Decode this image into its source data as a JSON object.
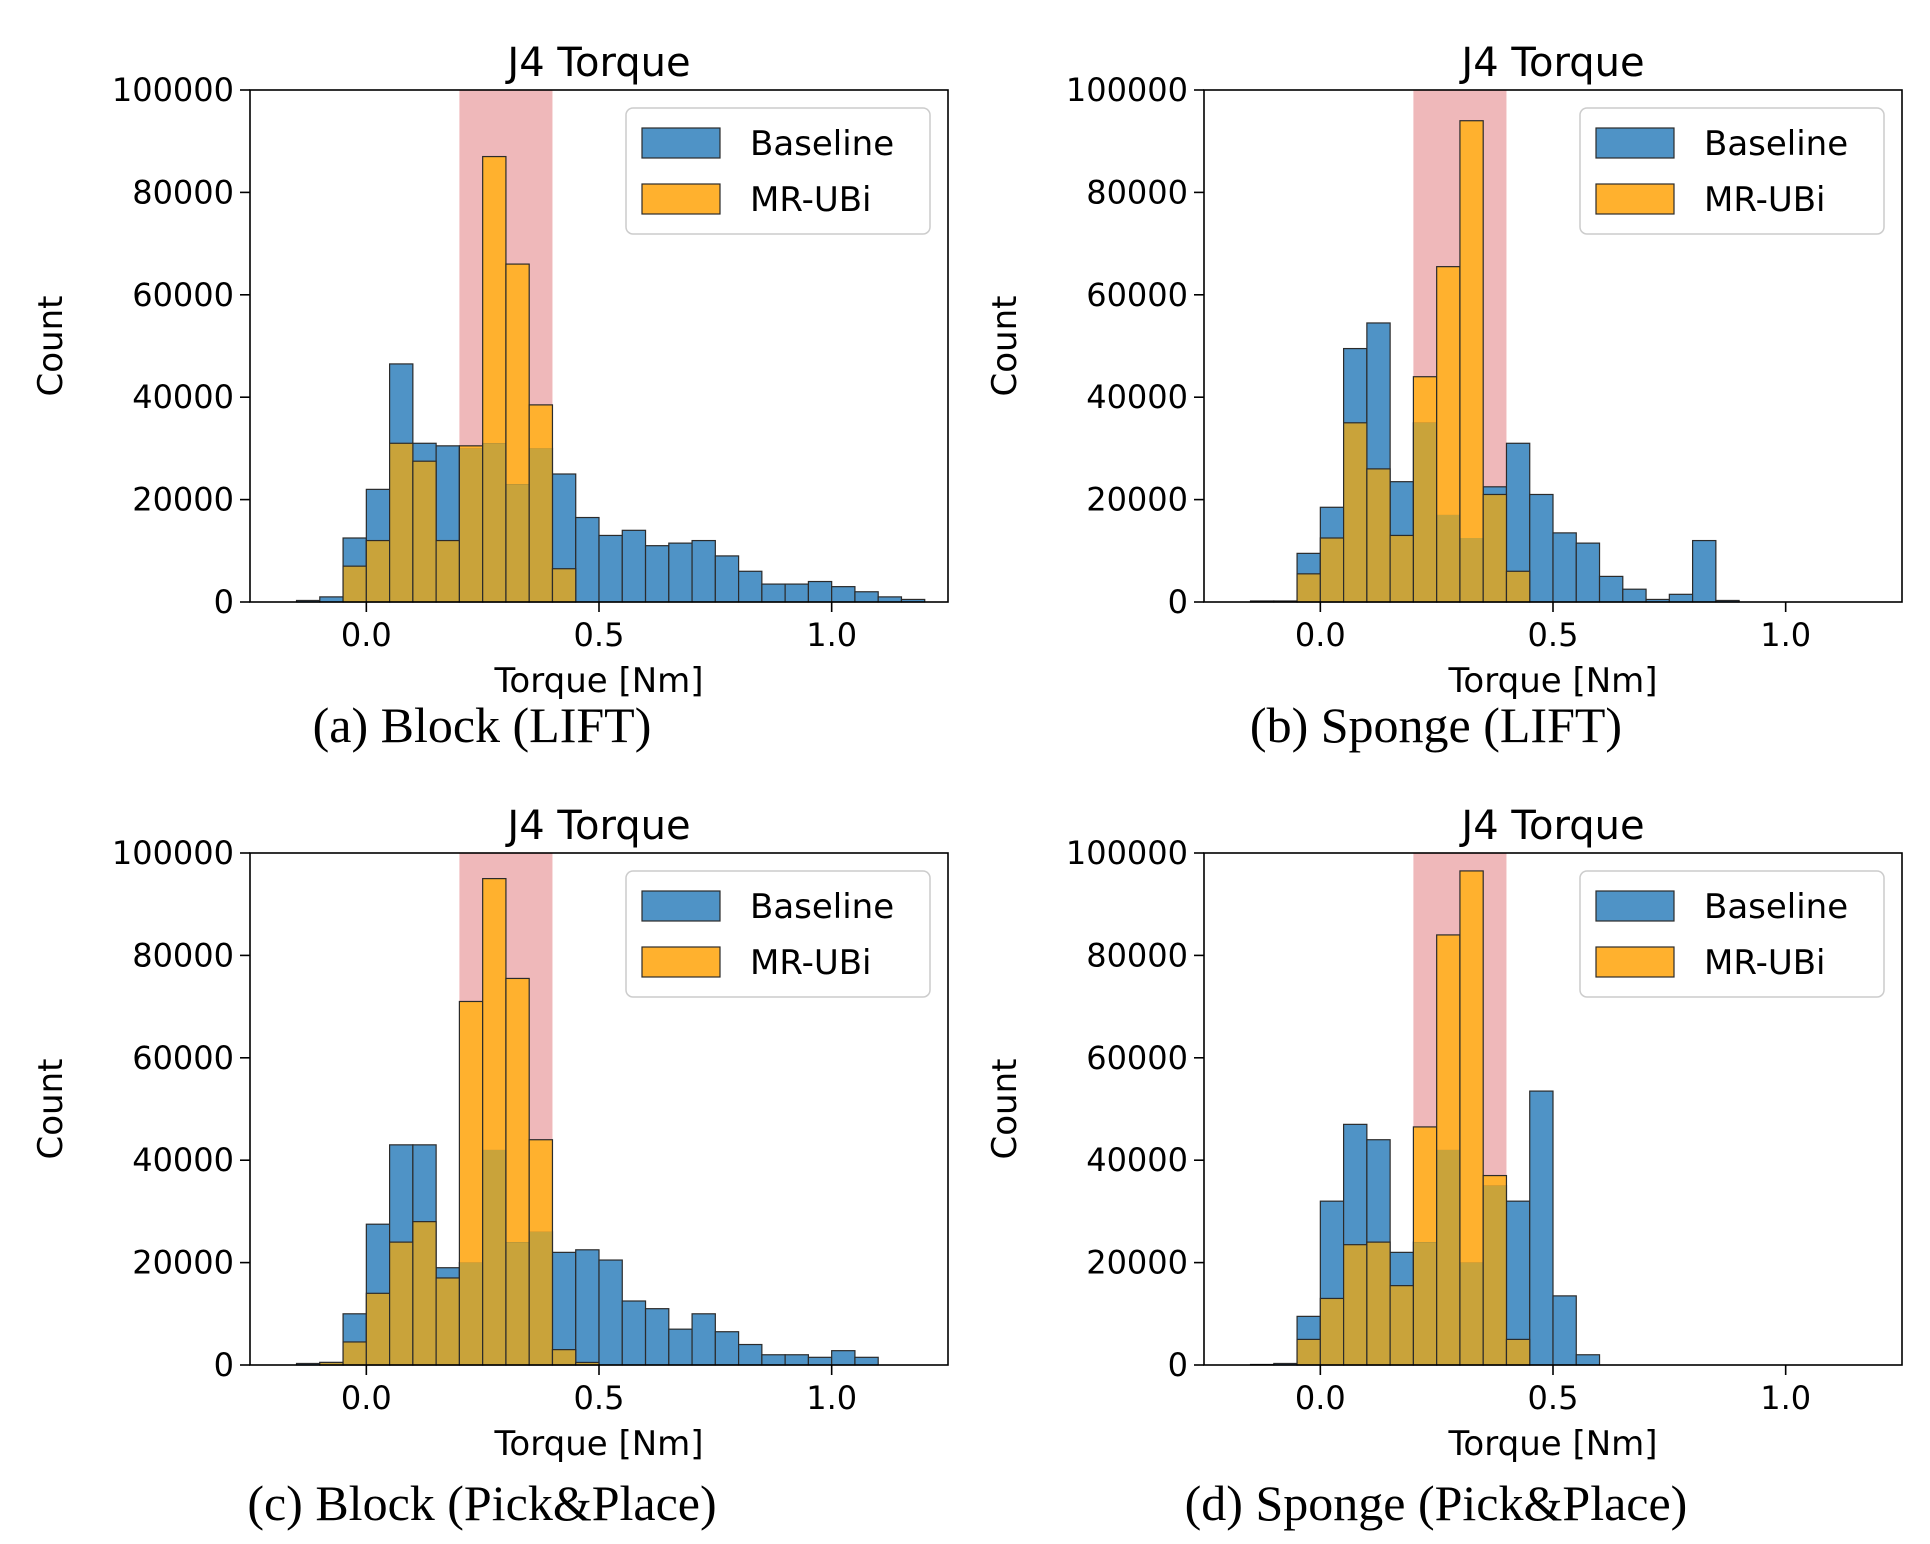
{
  "colors": {
    "baseline": "#4f93c6",
    "mrubi": "#ffb12e",
    "overlap": "#c9a33a",
    "band": "#e9a0a3",
    "edge": "#2b2b2b"
  },
  "chart_data": [
    {
      "type": "bar",
      "caption": "(a) Block (LIFT)",
      "title": "J4 Torque",
      "xlabel": "Torque [Nm]",
      "ylabel": "Count",
      "xlim": [
        -0.25,
        1.25
      ],
      "ylim": [
        0,
        100000
      ],
      "xticks": [
        "0.0",
        "0.5",
        "1.0"
      ],
      "yticks": [
        "0",
        "20000",
        "40000",
        "60000",
        "80000",
        "100000"
      ],
      "highlight_band": [
        0.2,
        0.4
      ],
      "bin_edges_start": -0.2,
      "bin_width": 0.05,
      "legend": [
        "Baseline",
        "MR-UBi"
      ],
      "series": [
        {
          "name": "Baseline",
          "values": [
            0,
            300,
            1000,
            12500,
            22000,
            46500,
            31000,
            30500,
            30000,
            31000,
            23000,
            30000,
            25000,
            16500,
            13000,
            14000,
            11000,
            11500,
            12000,
            9000,
            6000,
            3500,
            3500,
            4000,
            3000,
            2000,
            1000,
            500
          ]
        },
        {
          "name": "MR-UBi",
          "values": [
            0,
            0,
            0,
            7000,
            12000,
            31000,
            27500,
            12000,
            30500,
            87000,
            66000,
            38500,
            6500,
            0,
            0,
            0,
            0,
            0,
            0,
            0,
            0,
            0,
            0,
            0,
            0,
            0,
            0,
            0
          ]
        }
      ]
    },
    {
      "type": "bar",
      "caption": "(b) Sponge (LIFT)",
      "title": "J4 Torque",
      "xlabel": "Torque [Nm]",
      "ylabel": "Count",
      "xlim": [
        -0.25,
        1.25
      ],
      "ylim": [
        0,
        100000
      ],
      "xticks": [
        "0.0",
        "0.5",
        "1.0"
      ],
      "yticks": [
        "0",
        "20000",
        "40000",
        "60000",
        "80000",
        "100000"
      ],
      "highlight_band": [
        0.2,
        0.4
      ],
      "bin_edges_start": -0.2,
      "bin_width": 0.05,
      "legend": [
        "Baseline",
        "MR-UBi"
      ],
      "series": [
        {
          "name": "Baseline",
          "values": [
            0,
            200,
            200,
            9500,
            18500,
            49500,
            54500,
            23500,
            35000,
            17000,
            12500,
            22500,
            31000,
            21000,
            13500,
            11500,
            5000,
            2500,
            500,
            1500,
            12000,
            300,
            0,
            0,
            0,
            0,
            0,
            0
          ]
        },
        {
          "name": "MR-UBi",
          "values": [
            0,
            0,
            0,
            5500,
            12500,
            35000,
            26000,
            13000,
            44000,
            65500,
            94000,
            21000,
            6000,
            0,
            0,
            0,
            0,
            0,
            0,
            0,
            0,
            0,
            0,
            0,
            0,
            0,
            0,
            0
          ]
        }
      ]
    },
    {
      "type": "bar",
      "caption": "(c) Block (Pick&Place)",
      "title": "J4 Torque",
      "xlabel": "Torque [Nm]",
      "ylabel": "Count",
      "xlim": [
        -0.25,
        1.25
      ],
      "ylim": [
        0,
        100000
      ],
      "xticks": [
        "0.0",
        "0.5",
        "1.0"
      ],
      "yticks": [
        "0",
        "20000",
        "40000",
        "60000",
        "80000",
        "100000"
      ],
      "highlight_band": [
        0.2,
        0.4
      ],
      "bin_edges_start": -0.2,
      "bin_width": 0.05,
      "legend": [
        "Baseline",
        "MR-UBi"
      ],
      "series": [
        {
          "name": "Baseline",
          "values": [
            0,
            300,
            500,
            10000,
            27500,
            43000,
            43000,
            19000,
            20000,
            42000,
            24000,
            26000,
            22000,
            22500,
            20500,
            12500,
            11000,
            7000,
            10000,
            6500,
            4000,
            2000,
            2000,
            1500,
            2800,
            1500,
            0,
            0
          ]
        },
        {
          "name": "MR-UBi",
          "values": [
            0,
            0,
            500,
            4500,
            14000,
            24000,
            28000,
            17000,
            71000,
            95000,
            75500,
            44000,
            3000,
            500,
            0,
            0,
            0,
            0,
            0,
            0,
            0,
            0,
            0,
            0,
            0,
            0,
            0,
            0
          ]
        }
      ]
    },
    {
      "type": "bar",
      "caption": "(d) Sponge (Pick&Place)",
      "title": "J4 Torque",
      "xlabel": "Torque [Nm]",
      "ylabel": "Count",
      "xlim": [
        -0.25,
        1.25
      ],
      "ylim": [
        0,
        100000
      ],
      "xticks": [
        "0.0",
        "0.5",
        "1.0"
      ],
      "yticks": [
        "0",
        "20000",
        "40000",
        "60000",
        "80000",
        "100000"
      ],
      "highlight_band": [
        0.2,
        0.4
      ],
      "bin_edges_start": -0.2,
      "bin_width": 0.05,
      "legend": [
        "Baseline",
        "MR-UBi"
      ],
      "series": [
        {
          "name": "Baseline",
          "values": [
            0,
            100,
            300,
            9500,
            32000,
            47000,
            44000,
            22000,
            24000,
            42000,
            20000,
            35000,
            32000,
            53500,
            13500,
            2000,
            0,
            0,
            0,
            0,
            0,
            0,
            0,
            0,
            0,
            0,
            0,
            0
          ]
        },
        {
          "name": "MR-UBi",
          "values": [
            0,
            0,
            0,
            5000,
            13000,
            23500,
            24000,
            15500,
            46500,
            84000,
            96500,
            37000,
            5000,
            0,
            0,
            0,
            0,
            0,
            0,
            0,
            0,
            0,
            0,
            0,
            0,
            0,
            0,
            0
          ]
        }
      ]
    }
  ]
}
